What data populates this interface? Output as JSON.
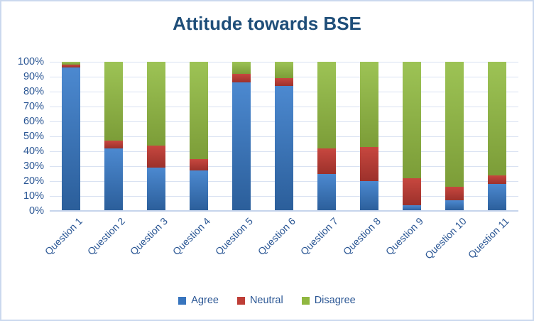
{
  "frame": {
    "background": "#ffffff",
    "border_color": "#cbd9ee"
  },
  "chart_data": {
    "type": "bar",
    "subtype": "stacked-100-percent",
    "title": "Attitude towards BSE",
    "title_color": "#1F4E79",
    "categories": [
      "Question 1",
      "Question 2",
      "Question 3",
      "Question 4",
      "Question 5",
      "Question 6",
      "Question 7",
      "Question 8",
      "Question 9",
      "Question 10",
      "Question 11"
    ],
    "series": [
      {
        "name": "Agree",
        "color": "#3875BE",
        "color_top": "#4C89D0",
        "color_bottom": "#2B5E9A",
        "values": [
          96,
          42,
          29,
          27,
          86,
          84,
          25,
          20,
          4,
          7,
          18
        ]
      },
      {
        "name": "Neutral",
        "color": "#BE3E37",
        "color_top": "#C7473F",
        "color_bottom": "#9C312B",
        "values": [
          2,
          5,
          15,
          8,
          6,
          5,
          17,
          23,
          18,
          9,
          6
        ]
      },
      {
        "name": "Disagree",
        "color": "#90B740",
        "color_top": "#9DC355",
        "color_bottom": "#7C9D38",
        "values": [
          2,
          53,
          56,
          65,
          8,
          11,
          58,
          57,
          78,
          84,
          76
        ]
      }
    ],
    "y_axis": {
      "min": 0,
      "max": 100,
      "tick_step": 10,
      "ticks": [
        "0%",
        "10%",
        "20%",
        "30%",
        "40%",
        "50%",
        "60%",
        "70%",
        "80%",
        "90%",
        "100%"
      ],
      "grid": true,
      "grid_color": "#d9e2f2",
      "label_color": "#2a5694"
    },
    "x_axis": {
      "label_rotation_deg": -45,
      "label_color": "#2a5694"
    },
    "legend": {
      "position": "bottom",
      "entries": [
        "Agree",
        "Neutral",
        "Disagree"
      ]
    }
  }
}
